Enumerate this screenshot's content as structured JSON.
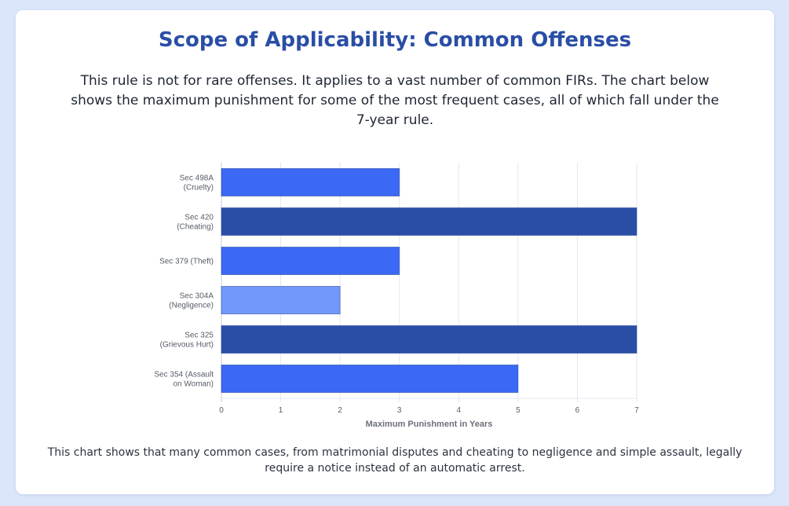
{
  "page": {
    "title": "Scope of Applicability: Common Offenses",
    "intro": "This rule is not for rare offenses. It applies to a vast number of common FIRs. The chart below shows the maximum punishment for some of the most frequent cases, all of which fall under the 7-year rule.",
    "footnote": "This chart shows that many common cases, from matrimonial disputes and cheating to negligence and simple assault, legally require a notice instead of an automatic arrest."
  },
  "colors": {
    "title": "#2a4ea6",
    "grid": "#e4e7f0",
    "axis": "#c9ced8"
  },
  "chart_data": {
    "type": "bar",
    "orientation": "horizontal",
    "title": "",
    "xlabel": "Maximum Punishment in Years",
    "ylabel": "",
    "xlim": [
      0,
      7
    ],
    "xticks": [
      0,
      1,
      2,
      3,
      4,
      5,
      6,
      7
    ],
    "grid": true,
    "legend": "none",
    "categories": [
      [
        "Sec 498A",
        "(Cruelty)"
      ],
      [
        "Sec 420",
        "(Cheating)"
      ],
      [
        "Sec 379 (Theft)"
      ],
      [
        "Sec 304A",
        "(Negligence)"
      ],
      [
        "Sec 325",
        "(Grievous Hurt)"
      ],
      [
        "Sec 354 (Assault",
        "on Woman)"
      ]
    ],
    "values": [
      3,
      7,
      3,
      2,
      7,
      5
    ],
    "bar_colors": [
      "#3b68f5",
      "#2a4ea6",
      "#3b68f5",
      "#7199fb",
      "#2a4ea6",
      "#3b68f5"
    ]
  }
}
